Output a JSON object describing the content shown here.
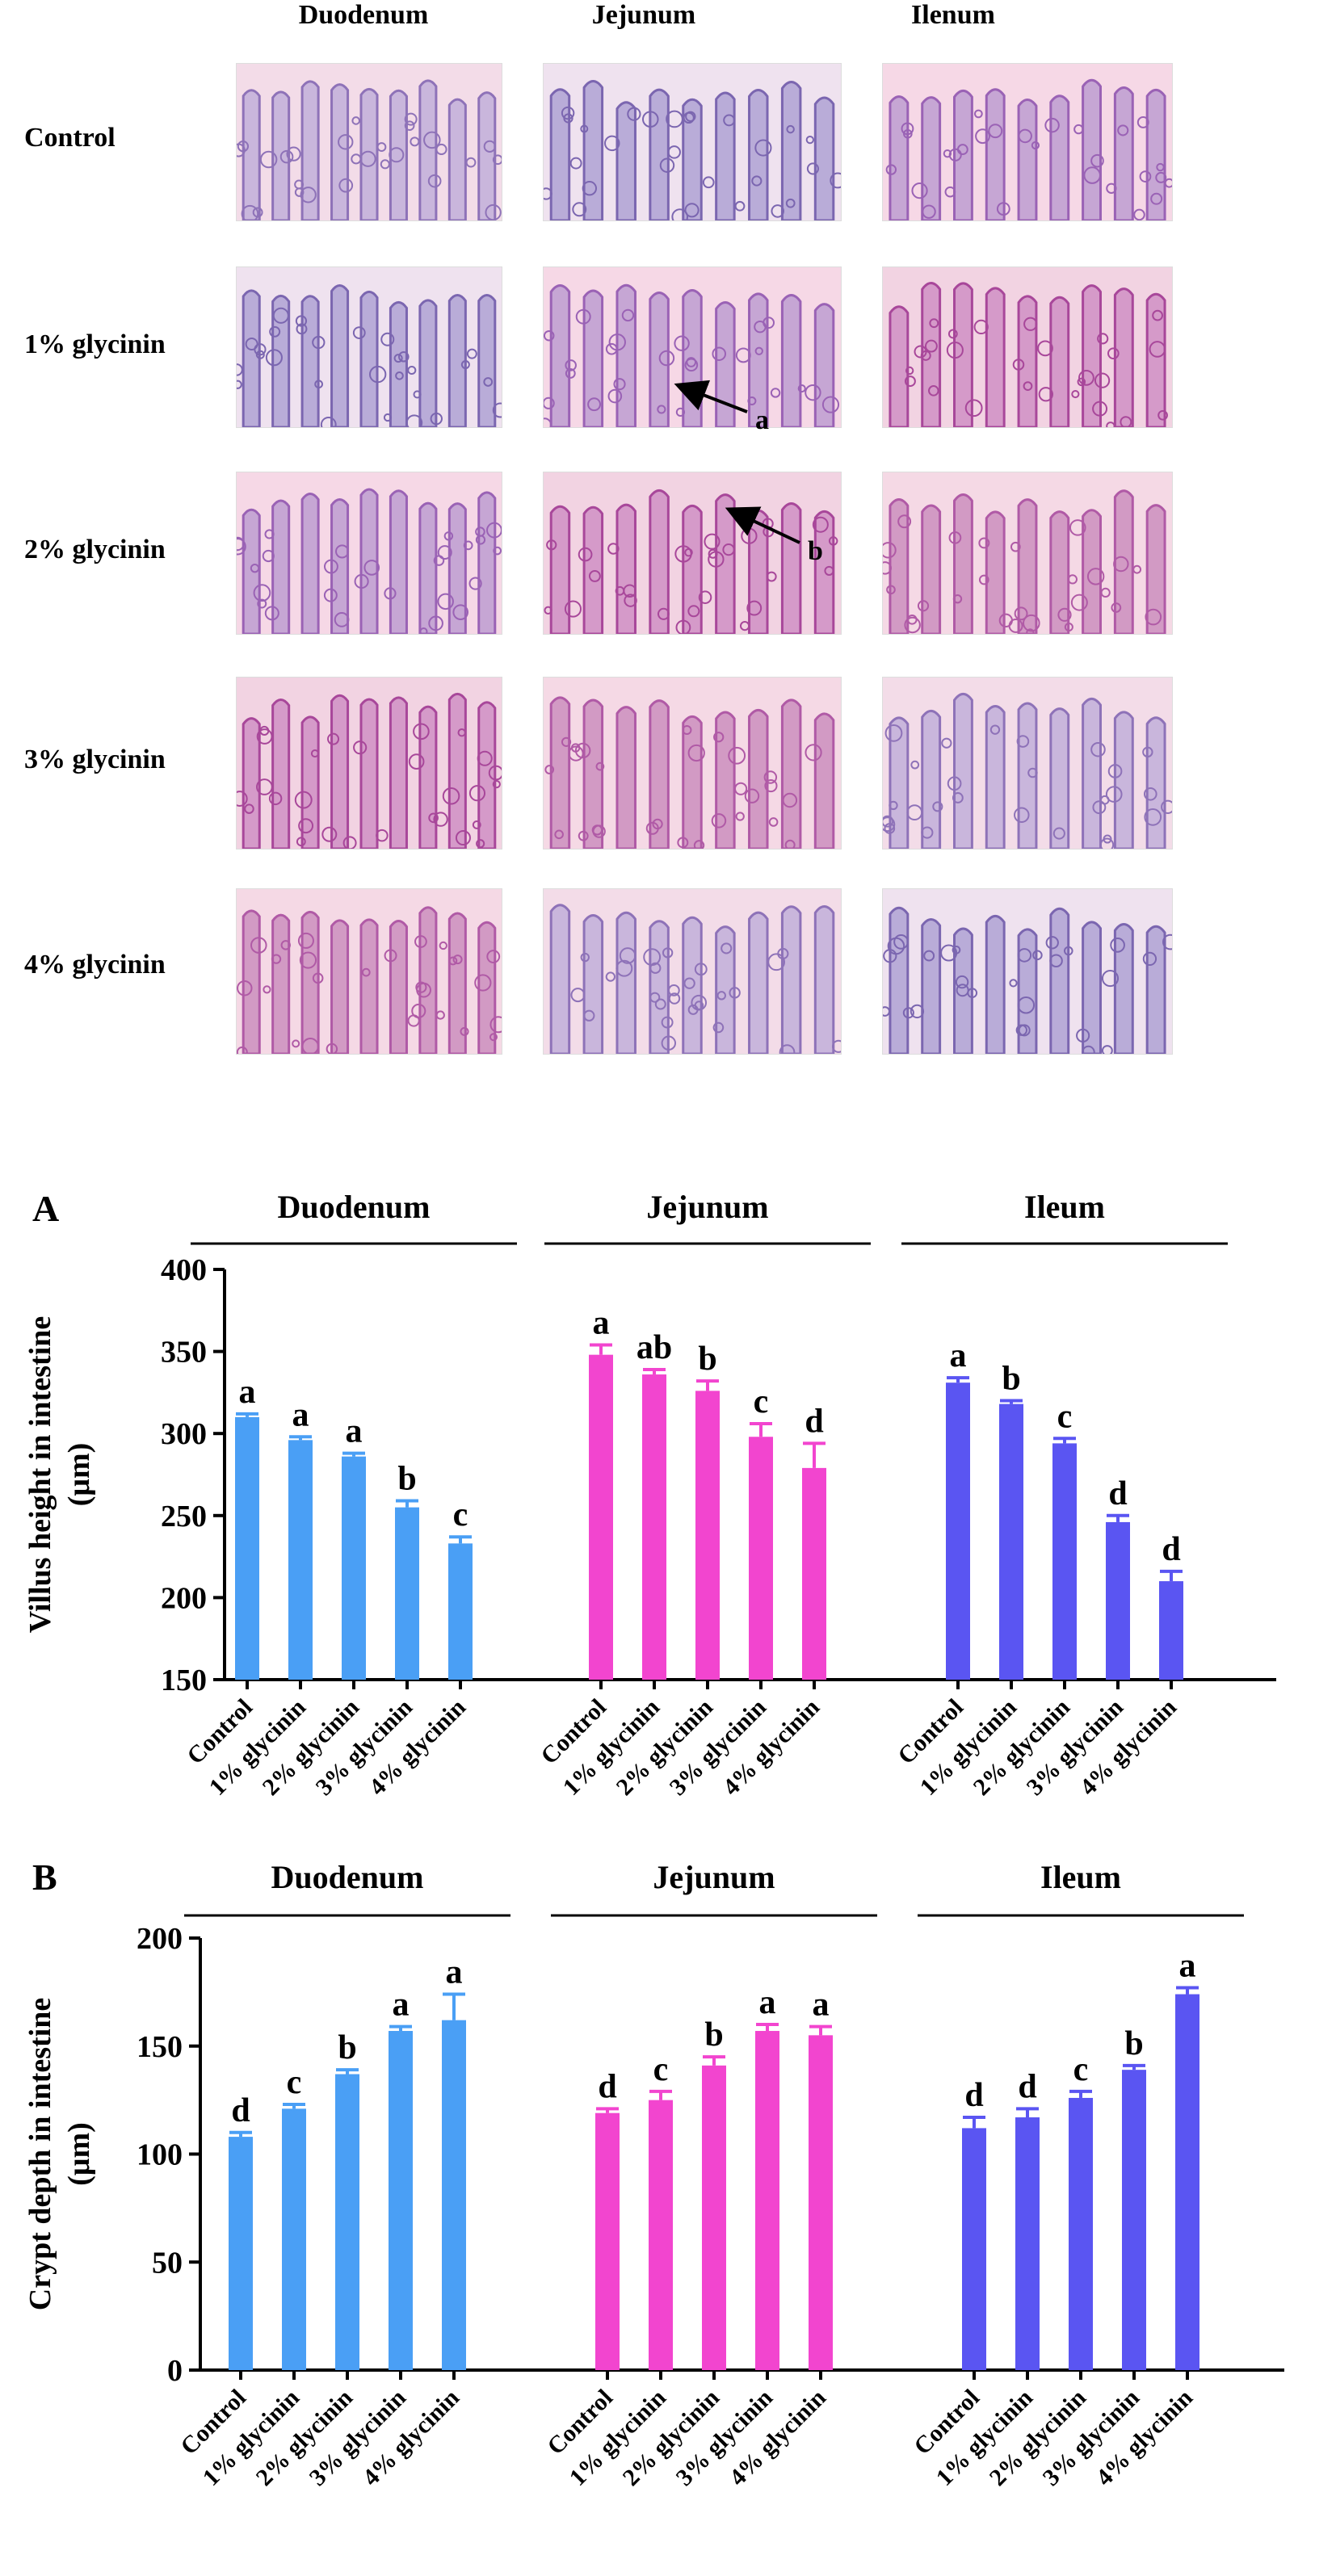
{
  "micrographs": {
    "columns": [
      "Duodenum",
      "Jejunum",
      "Ileum"
    ],
    "rows": [
      "Control",
      "1% glycinin",
      "2% glycinin",
      "3% glycinin",
      "4% glycinin"
    ],
    "annotations": [
      {
        "label": "a",
        "row": 1,
        "column": 1
      },
      {
        "label": "b",
        "row": 2,
        "column": 1
      }
    ]
  },
  "chart_data": [
    {
      "type": "bar",
      "panel_label": "A",
      "ylabel": "Villus height in intestine (μm)",
      "ylim": [
        150,
        400
      ],
      "yticks": [
        150,
        200,
        250,
        300,
        350,
        400
      ],
      "categories": [
        "Control",
        "1% glycinin",
        "2% glycinin",
        "3% glycinin",
        "4% glycinin"
      ],
      "groups": [
        {
          "name": "Duodenum",
          "color": "#4a9ff5",
          "values": [
            310,
            296,
            286,
            255,
            233
          ],
          "errors": [
            2,
            2,
            2,
            4,
            4
          ],
          "letters": [
            "a",
            "a",
            "a",
            "b",
            "c"
          ]
        },
        {
          "name": "Jejunum",
          "color": "#f245cf",
          "values": [
            348,
            336,
            326,
            298,
            279
          ],
          "errors": [
            6,
            3,
            6,
            8,
            15
          ],
          "letters": [
            "a",
            "ab",
            "b",
            "c",
            "d"
          ]
        },
        {
          "name": "Ileum",
          "color": "#5a55f2",
          "values": [
            331,
            318,
            294,
            246,
            210
          ],
          "errors": [
            3,
            2,
            3,
            4,
            6
          ],
          "letters": [
            "a",
            "b",
            "c",
            "d",
            "d"
          ]
        }
      ]
    },
    {
      "type": "bar",
      "panel_label": "B",
      "ylabel": "Crypt depth in intestine (μm)",
      "ylim": [
        0,
        200
      ],
      "yticks": [
        0,
        50,
        100,
        150,
        200
      ],
      "categories": [
        "Control",
        "1% glycinin",
        "2% glycinin",
        "3% glycinin",
        "4% glycinin"
      ],
      "groups": [
        {
          "name": "Duodenum",
          "color": "#4a9ff5",
          "values": [
            108,
            121,
            137,
            157,
            162
          ],
          "errors": [
            2,
            2,
            2,
            2,
            12
          ],
          "letters": [
            "d",
            "c",
            "b",
            "a",
            "a"
          ]
        },
        {
          "name": "Jejunum",
          "color": "#f245cf",
          "values": [
            119,
            125,
            141,
            157,
            155
          ],
          "errors": [
            2,
            4,
            4,
            3,
            4
          ],
          "letters": [
            "d",
            "c",
            "b",
            "a",
            "a"
          ]
        },
        {
          "name": "Ileum",
          "color": "#5a55f2",
          "values": [
            112,
            117,
            126,
            139,
            174
          ],
          "errors": [
            5,
            4,
            3,
            2,
            3
          ],
          "letters": [
            "d",
            "d",
            "c",
            "b",
            "a"
          ]
        }
      ]
    }
  ]
}
